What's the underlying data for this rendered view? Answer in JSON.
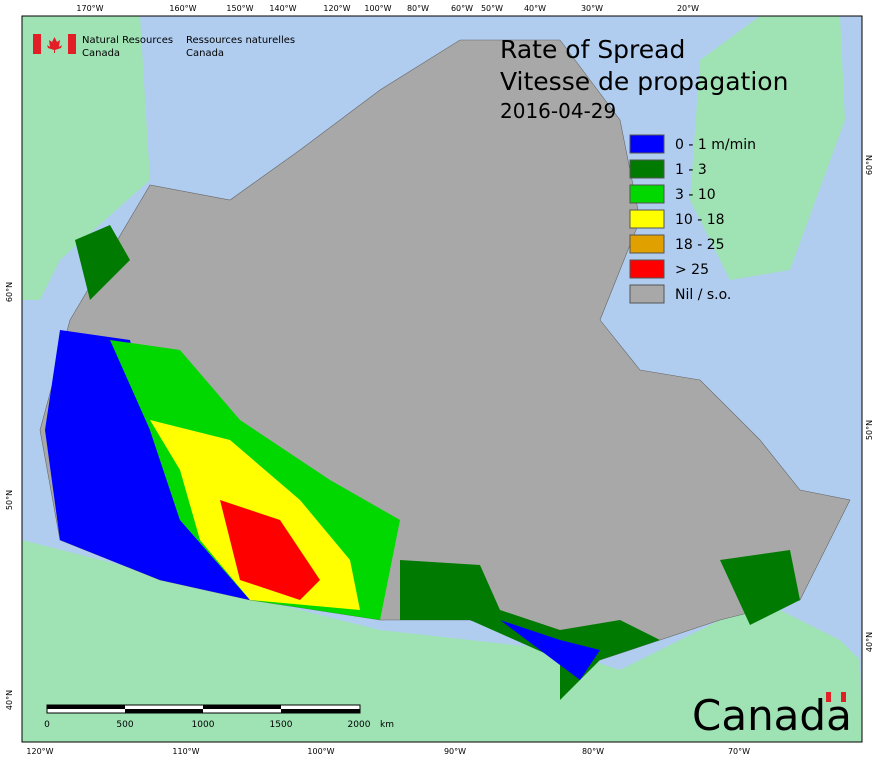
{
  "header": {
    "agency_en": [
      "Natural Resources",
      "Canada"
    ],
    "agency_fr": [
      "Ressources naturelles",
      "Canada"
    ],
    "wordmark": "Canada"
  },
  "title": [
    "Rate of Spread",
    "Vitesse de propagation"
  ],
  "date": "2016-04-29",
  "legend": [
    {
      "label": "0 - 1 m/min",
      "color": "#0000ff"
    },
    {
      "label": "1 - 3",
      "color": "#007a00"
    },
    {
      "label": "3 - 10",
      "color": "#00d800"
    },
    {
      "label": "10 - 18",
      "color": "#ffff00"
    },
    {
      "label": "18 - 25",
      "color": "#e0a000"
    },
    {
      "label": "> 25",
      "color": "#ff0000"
    },
    {
      "label": "Nil / s.o.",
      "color": "#a8a8a8"
    }
  ],
  "graticule": {
    "top": [
      "170°W",
      "160°W",
      "150°W",
      "140°W",
      "120°W",
      "100°W",
      "80°W",
      "60°W",
      "50°W",
      "40°W",
      "30°W",
      "20°W"
    ],
    "bottom": [
      "120°W",
      "110°W",
      "100°W",
      "90°W",
      "80°W",
      "70°W"
    ],
    "left": [
      "60°N",
      "50°N",
      "40°N"
    ],
    "right": [
      "60°N",
      "50°N",
      "40°N"
    ]
  },
  "scale_bar": {
    "ticks": [
      "0",
      "500",
      "1000",
      "1500",
      "2000"
    ],
    "unit": "km"
  }
}
